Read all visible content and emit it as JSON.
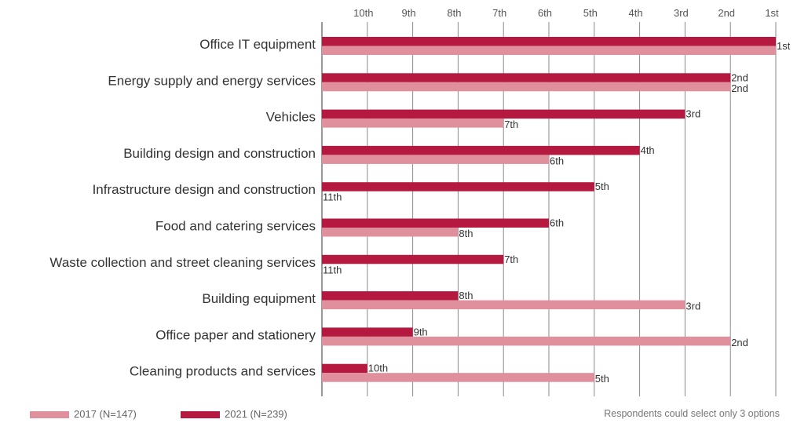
{
  "chart_data": {
    "type": "bar",
    "orientation": "horizontal",
    "axis_direction": "reversed (10th at left, 1st at right)",
    "axis_position": "top",
    "grid": true,
    "xlim": [
      11,
      1
    ],
    "ticks": [
      "10th",
      "9th",
      "8th",
      "7th",
      "6th",
      "5th",
      "4th",
      "3rd",
      "2nd",
      "1st"
    ],
    "categories": [
      "Office IT equipment",
      "Energy supply and energy services",
      "Vehicles",
      "Building design and construction",
      "Infrastructure design and construction",
      "Food and catering services",
      "Waste collection and street cleaning services",
      "Building equipment",
      "Office paper and stationery",
      "Cleaning products and services"
    ],
    "series": [
      {
        "name": "2021 (N=239)",
        "color": "#b5193f",
        "values": [
          1,
          2,
          3,
          4,
          5,
          6,
          7,
          8,
          9,
          10
        ],
        "labels": [
          "1st",
          "2nd",
          "3rd",
          "4th",
          "5th",
          "6th",
          "7th",
          "8th",
          "9th",
          "10th"
        ]
      },
      {
        "name": "2017 (N=147)",
        "color": "#e0909d",
        "values": [
          1,
          2,
          7,
          6,
          11,
          8,
          11,
          3,
          2,
          5
        ],
        "labels": [
          "",
          "2nd",
          "7th",
          "6th",
          "11th",
          "8th",
          "11th",
          "3rd",
          "2nd",
          "5th"
        ]
      }
    ],
    "legend_position": "bottom-left",
    "note": "Respondents could select only 3 options"
  }
}
